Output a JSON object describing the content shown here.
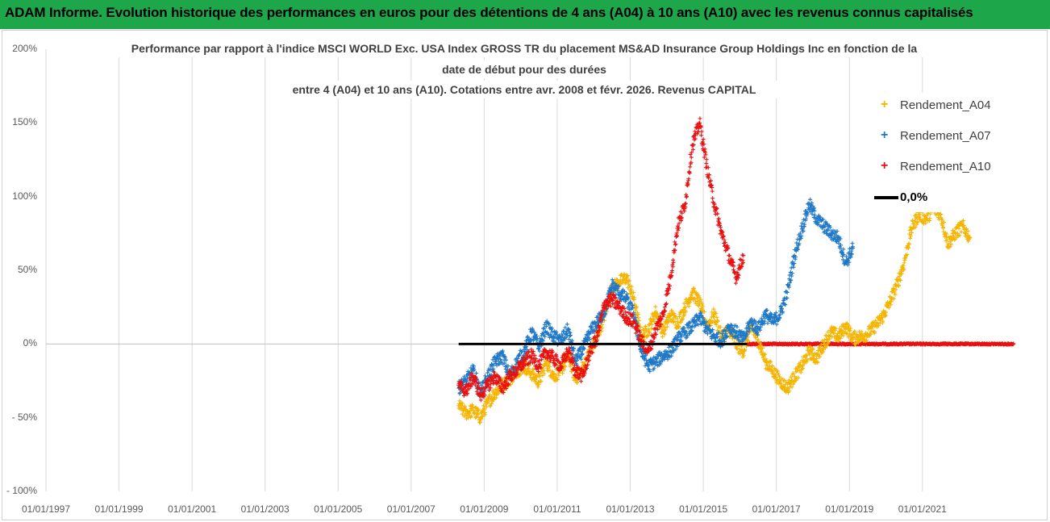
{
  "banner": {
    "text": "ADAM Informe. Evolution historique des performances en euros pour des détentions de 4 ans (A04) à 10 ans (A10) avec les revenus connus capitalisés",
    "color": "#1ea64b"
  },
  "chart_data": {
    "type": "scatter",
    "title_lines": [
      "Performance par rapport à l'indice MSCI WORLD Exc. USA Index GROSS TR  du placement MS&AD Insurance Group Holdings Inc en fonction de la",
      "date de début pour des durées",
      "entre 4 (A04) et 10 ans (A10). Cotations entre avr. 2008 et févr. 2026. Revenus CAPITAL"
    ],
    "xlabel": "",
    "ylabel": "",
    "xlim": [
      1997.0,
      2023.5
    ],
    "ylim": [
      -100,
      200
    ],
    "y_ticks": [
      {
        "value": 200,
        "label": "200%"
      },
      {
        "value": 150,
        "label": "150%"
      },
      {
        "value": 100,
        "label": "100%"
      },
      {
        "value": 50,
        "label": "50%"
      },
      {
        "value": 0,
        "label": "0%"
      },
      {
        "value": -50,
        "label": "- 50%"
      },
      {
        "value": -100,
        "label": "- 100%"
      }
    ],
    "x_ticks": [
      {
        "value": 1997,
        "label": "01/01/1997"
      },
      {
        "value": 1999,
        "label": "01/01/1999"
      },
      {
        "value": 2001,
        "label": "01/01/2001"
      },
      {
        "value": 2003,
        "label": "01/01/2003"
      },
      {
        "value": 2005,
        "label": "01/01/2005"
      },
      {
        "value": 2007,
        "label": "01/01/2007"
      },
      {
        "value": 2009,
        "label": "01/01/2009"
      },
      {
        "value": 2011,
        "label": "01/01/2011"
      },
      {
        "value": 2013,
        "label": "01/01/2013"
      },
      {
        "value": 2015,
        "label": "01/01/2015"
      },
      {
        "value": 2017,
        "label": "01/01/2017"
      },
      {
        "value": 2019,
        "label": "01/01/2019"
      },
      {
        "value": 2021,
        "label": "01/01/2021"
      }
    ],
    "grid": "vertical",
    "legend_position": "top-right",
    "series": [
      {
        "name": "Rendement_A04",
        "color": "#f5b400",
        "marker": "+",
        "x": [
          2008.3,
          2008.5,
          2008.7,
          2008.9,
          2009.1,
          2009.3,
          2009.5,
          2009.7,
          2009.9,
          2010.1,
          2010.3,
          2010.5,
          2010.7,
          2010.9,
          2011.1,
          2011.3,
          2011.5,
          2011.7,
          2011.9,
          2012.1,
          2012.3,
          2012.5,
          2012.7,
          2012.9,
          2013.1,
          2013.3,
          2013.5,
          2013.7,
          2013.9,
          2014.1,
          2014.3,
          2014.5,
          2014.7,
          2014.9,
          2015.1,
          2015.3,
          2015.5,
          2015.7,
          2015.9,
          2016.1,
          2016.3,
          2016.5,
          2016.7,
          2016.9,
          2017.1,
          2017.3,
          2017.5,
          2017.7,
          2017.9,
          2018.1,
          2018.3,
          2018.5,
          2018.7,
          2018.9,
          2019.1,
          2019.3,
          2019.5,
          2019.7,
          2019.9,
          2020.1,
          2020.3,
          2020.5,
          2020.7,
          2020.9,
          2021.1,
          2021.3,
          2021.5,
          2021.7,
          2021.9,
          2022.1,
          2022.3
        ],
        "y": [
          -42,
          -47,
          -45,
          -50,
          -40,
          -33,
          -28,
          -24,
          -18,
          -15,
          -20,
          -26,
          -12,
          -22,
          -18,
          -8,
          -24,
          -16,
          -5,
          5,
          20,
          38,
          42,
          45,
          30,
          5,
          10,
          22,
          8,
          20,
          14,
          25,
          35,
          28,
          12,
          20,
          5,
          10,
          0,
          -5,
          12,
          3,
          -12,
          -18,
          -25,
          -30,
          -22,
          -15,
          -5,
          -10,
          0,
          8,
          5,
          12,
          4,
          5,
          7,
          12,
          18,
          28,
          40,
          55,
          78,
          88,
          85,
          92,
          88,
          68,
          75,
          80,
          72
        ]
      },
      {
        "name": "Rendement_A07",
        "color": "#1f78c8",
        "marker": "+",
        "x": [
          2008.3,
          2008.5,
          2008.7,
          2008.9,
          2009.1,
          2009.3,
          2009.5,
          2009.7,
          2009.9,
          2010.1,
          2010.3,
          2010.5,
          2010.7,
          2010.9,
          2011.1,
          2011.3,
          2011.5,
          2011.7,
          2011.9,
          2012.1,
          2012.3,
          2012.5,
          2012.7,
          2012.9,
          2013.1,
          2013.3,
          2013.5,
          2013.7,
          2013.9,
          2014.1,
          2014.3,
          2014.5,
          2014.7,
          2014.9,
          2015.1,
          2015.3,
          2015.5,
          2015.7,
          2015.9,
          2016.1,
          2016.3,
          2016.5,
          2016.7,
          2016.9,
          2017.1,
          2017.3,
          2017.5,
          2017.7,
          2017.9,
          2018.1,
          2018.3,
          2018.5,
          2018.7,
          2018.9,
          2019.1
        ],
        "y": [
          -30,
          -25,
          -18,
          -33,
          -22,
          -12,
          -8,
          -22,
          -12,
          -5,
          8,
          -2,
          12,
          5,
          2,
          10,
          -12,
          -4,
          8,
          15,
          22,
          40,
          35,
          30,
          20,
          -5,
          -15,
          -12,
          -8,
          -5,
          3,
          8,
          12,
          18,
          10,
          5,
          2,
          12,
          8,
          3,
          15,
          10,
          20,
          15,
          20,
          35,
          60,
          78,
          95,
          85,
          80,
          75,
          72,
          55,
          65
        ]
      },
      {
        "name": "Rendement_A10",
        "color": "#e81010",
        "marker": "+",
        "x": [
          2008.3,
          2008.5,
          2008.7,
          2008.9,
          2009.1,
          2009.3,
          2009.5,
          2009.7,
          2009.9,
          2010.1,
          2010.3,
          2010.5,
          2010.7,
          2010.9,
          2011.1,
          2011.3,
          2011.5,
          2011.7,
          2011.9,
          2012.1,
          2012.3,
          2012.5,
          2012.7,
          2012.9,
          2013.1,
          2013.3,
          2013.5,
          2013.7,
          2013.9,
          2014.1,
          2014.3,
          2014.5,
          2014.7,
          2014.9,
          2015.1,
          2015.3,
          2015.5,
          2015.7,
          2015.9,
          2016.1
        ],
        "y": [
          -28,
          -32,
          -22,
          -35,
          -28,
          -22,
          -30,
          -22,
          -18,
          -12,
          -8,
          -15,
          -5,
          -10,
          -15,
          -5,
          -18,
          -22,
          -5,
          5,
          28,
          30,
          25,
          18,
          15,
          2,
          -5,
          10,
          20,
          45,
          80,
          95,
          135,
          150,
          120,
          95,
          75,
          60,
          45,
          60
        ]
      },
      {
        "name": "0,0%",
        "color": "#000000",
        "marker": "line",
        "x": [
          2008.3,
          2016.2
        ],
        "y": [
          0,
          0
        ]
      }
    ],
    "extra_markers": {
      "description": "A10 series continuing as flat red markers at 0%",
      "color": "#e81010",
      "x": [
        2016.2,
        2023.5
      ],
      "y": [
        0,
        0
      ]
    }
  }
}
